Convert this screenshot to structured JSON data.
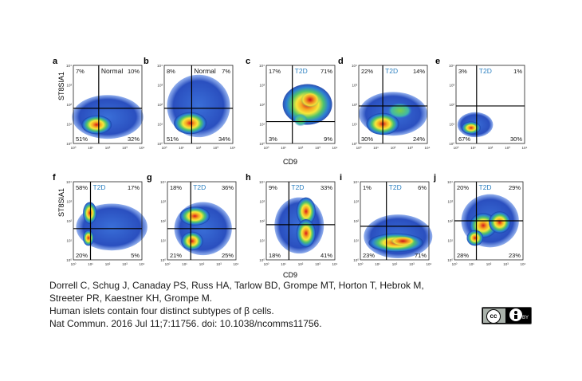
{
  "figure": {
    "y_axis_label": "ST8SIA1",
    "x_axis_label": "CD9",
    "tick_labels": [
      "10⁰",
      "10¹",
      "10²",
      "10³",
      "10⁴"
    ],
    "panels": [
      {
        "letter": "a",
        "condition": "Normal",
        "q_ul": "7%",
        "q_ur": "10%",
        "q_ll": "51%",
        "q_lr": "32%"
      },
      {
        "letter": "b",
        "condition": "Normal",
        "q_ul": "8%",
        "q_ur": "7%",
        "q_ll": "51%",
        "q_lr": "34%"
      },
      {
        "letter": "c",
        "condition": "T2D",
        "q_ul": "17%",
        "q_ur": "71%",
        "q_ll": "3%",
        "q_lr": "9%"
      },
      {
        "letter": "d",
        "condition": "T2D",
        "q_ul": "22%",
        "q_ur": "14%",
        "q_ll": "30%",
        "q_lr": "24%"
      },
      {
        "letter": "e",
        "condition": "T2D",
        "q_ul": "3%",
        "q_ur": "1%",
        "q_ll": "67%",
        "q_lr": "30%"
      },
      {
        "letter": "f",
        "condition": "T2D",
        "q_ul": "58%",
        "q_ur": "17%",
        "q_ll": "20%",
        "q_lr": "5%"
      },
      {
        "letter": "g",
        "condition": "T2D",
        "q_ul": "18%",
        "q_ur": "36%",
        "q_ll": "21%",
        "q_lr": "25%"
      },
      {
        "letter": "h",
        "condition": "T2D",
        "q_ul": "9%",
        "q_ur": "33%",
        "q_ll": "18%",
        "q_lr": "41%"
      },
      {
        "letter": "i",
        "condition": "T2D",
        "q_ul": "1%",
        "q_ur": "6%",
        "q_ll": "23%",
        "q_lr": "71%"
      },
      {
        "letter": "j",
        "condition": "T2D",
        "q_ul": "20%",
        "q_ur": "29%",
        "q_ll": "28%",
        "q_lr": "23%"
      }
    ]
  },
  "caption": {
    "line1": "Dorrell C, Schug J, Canaday PS, Russ HA, Tarlow BD, Grompe MT, Horton T, Hebrok M,",
    "line2": "Streeter PR, Kaestner KH, Grompe M.",
    "line3": "Human islets contain four distinct  subtypes of β cells.",
    "line4": "Nat Commun. 2016 Jul 11;7:11756. doi: 10.1038/ncomms11756."
  },
  "license": {
    "cc_mark": "cc",
    "by_text": "BY"
  },
  "colors": {
    "condition_normal": "#111111",
    "condition_t2d": "#2a7fc0",
    "gate_line": "#000000"
  }
}
